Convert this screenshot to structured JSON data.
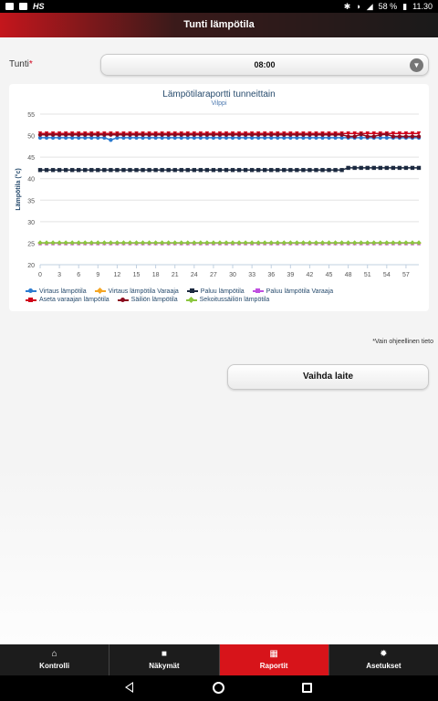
{
  "status_bar": {
    "brand": "HS",
    "battery": "58 %",
    "time": "11.30"
  },
  "header": {
    "title": "Tunti lämpötila"
  },
  "hour_select": {
    "label": "Tunti",
    "required_mark": "*",
    "value": "08:00"
  },
  "chart_data": {
    "type": "line",
    "title": "Lämpötilaraportti tunneittain",
    "subtitle": "Vilppi",
    "ylabel": "Lämpötila (°c)",
    "ylim": [
      20,
      55
    ],
    "yticks": [
      20,
      25,
      30,
      35,
      40,
      45,
      50,
      55
    ],
    "xlim": [
      0,
      59
    ],
    "xticks_major": [
      0,
      3,
      6,
      9,
      12,
      15,
      18,
      21,
      24,
      27,
      30,
      33,
      36,
      39,
      42,
      45,
      48,
      51,
      54,
      57
    ],
    "x": [
      0,
      1,
      2,
      3,
      4,
      5,
      6,
      7,
      8,
      9,
      10,
      11,
      12,
      13,
      14,
      15,
      16,
      17,
      18,
      19,
      20,
      21,
      22,
      23,
      24,
      25,
      26,
      27,
      28,
      29,
      30,
      31,
      32,
      33,
      34,
      35,
      36,
      37,
      38,
      39,
      40,
      41,
      42,
      43,
      44,
      45,
      46,
      47,
      48,
      49,
      50,
      51,
      52,
      53,
      54,
      55,
      56,
      57,
      58,
      59
    ],
    "grid": true,
    "legend_position": "bottom",
    "series": [
      {
        "name": "Virtaus lämpötila",
        "color": "#2b7bd0",
        "marker": "circle",
        "values": [
          49.5,
          49.5,
          49.5,
          49.5,
          49.5,
          49.5,
          49.5,
          49.5,
          49.5,
          49.5,
          49.5,
          49.0,
          49.5,
          49.5,
          49.5,
          49.5,
          49.5,
          49.5,
          49.5,
          49.5,
          49.5,
          49.5,
          49.5,
          49.5,
          49.5,
          49.5,
          49.5,
          49.5,
          49.5,
          49.5,
          49.5,
          49.5,
          49.5,
          49.5,
          49.5,
          49.5,
          49.5,
          49.5,
          49.5,
          49.5,
          49.5,
          49.5,
          49.5,
          49.5,
          49.5,
          49.5,
          49.5,
          49.5,
          49.5,
          49.5,
          49.5,
          49.5,
          49.5,
          49.5,
          49.5,
          49.5,
          49.5,
          49.5,
          49.5,
          49.5
        ]
      },
      {
        "name": "Virtaus lämpötila Varaaja",
        "color": "#f5a623",
        "marker": "diamond",
        "values": [
          25,
          25,
          25,
          25,
          25,
          25,
          25,
          25,
          25,
          25,
          25,
          25,
          25,
          25,
          25,
          25,
          25,
          25,
          25,
          25,
          25,
          25,
          25,
          25,
          25,
          25,
          25,
          25,
          25,
          25,
          25,
          25,
          25,
          25,
          25,
          25,
          25,
          25,
          25,
          25,
          25,
          25,
          25,
          25,
          25,
          25,
          25,
          25,
          25,
          25,
          25,
          25,
          25,
          25,
          25,
          25,
          25,
          25,
          25,
          25
        ]
      },
      {
        "name": "Paluu lämpötila",
        "color": "#1c2a40",
        "marker": "square",
        "values": [
          42,
          42,
          42,
          42,
          42,
          42,
          42,
          42,
          42,
          42,
          42,
          42,
          42,
          42,
          42,
          42,
          42,
          42,
          42,
          42,
          42,
          42,
          42,
          42,
          42,
          42,
          42,
          42,
          42,
          42,
          42,
          42,
          42,
          42,
          42,
          42,
          42,
          42,
          42,
          42,
          42,
          42,
          42,
          42,
          42,
          42,
          42,
          42,
          42.5,
          42.5,
          42.5,
          42.5,
          42.5,
          42.5,
          42.5,
          42.5,
          42.5,
          42.5,
          42.5,
          42.5
        ]
      },
      {
        "name": "Paluu lämpötila Varaaja",
        "color": "#c050e0",
        "marker": "triangle",
        "values": [
          25,
          25,
          25,
          25,
          25,
          25,
          25,
          25,
          25,
          25,
          25,
          25,
          25,
          25,
          25,
          25,
          25,
          25,
          25,
          25,
          25,
          25,
          25,
          25,
          25,
          25,
          25,
          25,
          25,
          25,
          25,
          25,
          25,
          25,
          25,
          25,
          25,
          25,
          25,
          25,
          25,
          25,
          25,
          25,
          25,
          25,
          25,
          25,
          25,
          25,
          25,
          25,
          25,
          25,
          25,
          25,
          25,
          25,
          25,
          25
        ]
      },
      {
        "name": "Aseta varaajan lämpötila",
        "color": "#d0021b",
        "marker": "triangle-down",
        "values": [
          50.5,
          50.5,
          50.5,
          50.5,
          50.5,
          50.5,
          50.5,
          50.5,
          50.5,
          50.5,
          50.5,
          50.5,
          50.5,
          50.5,
          50.5,
          50.5,
          50.5,
          50.5,
          50.5,
          50.5,
          50.5,
          50.5,
          50.5,
          50.5,
          50.5,
          50.5,
          50.5,
          50.5,
          50.5,
          50.5,
          50.5,
          50.5,
          50.5,
          50.5,
          50.5,
          50.5,
          50.5,
          50.5,
          50.5,
          50.5,
          50.5,
          50.5,
          50.5,
          50.5,
          50.5,
          50.5,
          50.5,
          50.5,
          50.5,
          50.5,
          50.5,
          50.5,
          50.5,
          50.5,
          50.5,
          50.5,
          50.5,
          50.5,
          50.5,
          50.5
        ]
      },
      {
        "name": "Säiliön lämpötila",
        "color": "#8b0a1e",
        "marker": "circle",
        "values": [
          50.2,
          50.2,
          50.2,
          50.2,
          50.2,
          50.2,
          50.2,
          50.2,
          50.2,
          50.2,
          50.2,
          50.2,
          50.2,
          50.2,
          50.2,
          50.2,
          50.2,
          50.2,
          50.2,
          50.2,
          50.2,
          50.2,
          50.2,
          50.2,
          50.2,
          50.2,
          50.2,
          50.2,
          50.2,
          50.2,
          50.2,
          50.2,
          50.2,
          50.2,
          50.2,
          50.2,
          50.2,
          50.2,
          50.2,
          50.2,
          50.2,
          50.2,
          50.2,
          50.2,
          50.2,
          50.2,
          50.2,
          50.2,
          49.8,
          49.8,
          50.3,
          49.8,
          49.8,
          50.2,
          50.3,
          49.8,
          49.8,
          49.8,
          49.8,
          49.8
        ]
      },
      {
        "name": "Sekoitussäiliön lämpötila",
        "color": "#8cc63f",
        "marker": "diamond",
        "values": [
          25.1,
          25.1,
          25.1,
          25.1,
          25.1,
          25.1,
          25.1,
          25.1,
          25.1,
          25.1,
          25.1,
          25.1,
          25.1,
          25.1,
          25.1,
          25.1,
          25.1,
          25.1,
          25.1,
          25.1,
          25.1,
          25.1,
          25.1,
          25.1,
          25.1,
          25.1,
          25.1,
          25.1,
          25.1,
          25.1,
          25.1,
          25.1,
          25.1,
          25.1,
          25.1,
          25.1,
          25.1,
          25.1,
          25.1,
          25.1,
          25.1,
          25.1,
          25.1,
          25.1,
          25.1,
          25.1,
          25.1,
          25.1,
          25.1,
          25.1,
          25.1,
          25.1,
          25.1,
          25.1,
          25.1,
          25.1,
          25.1,
          25.1,
          25.1,
          25.1
        ]
      }
    ]
  },
  "note": "*Vain ohjeellinen tieto",
  "change_button": "Vaihda laite",
  "bottom_nav": [
    {
      "label": "Kontrolli",
      "icon": "home-icon",
      "active": false
    },
    {
      "label": "Näkymät",
      "icon": "camera-icon",
      "active": false
    },
    {
      "label": "Raportit",
      "icon": "grid-icon",
      "active": true
    },
    {
      "label": "Asetukset",
      "icon": "gear-icon",
      "active": false
    }
  ]
}
